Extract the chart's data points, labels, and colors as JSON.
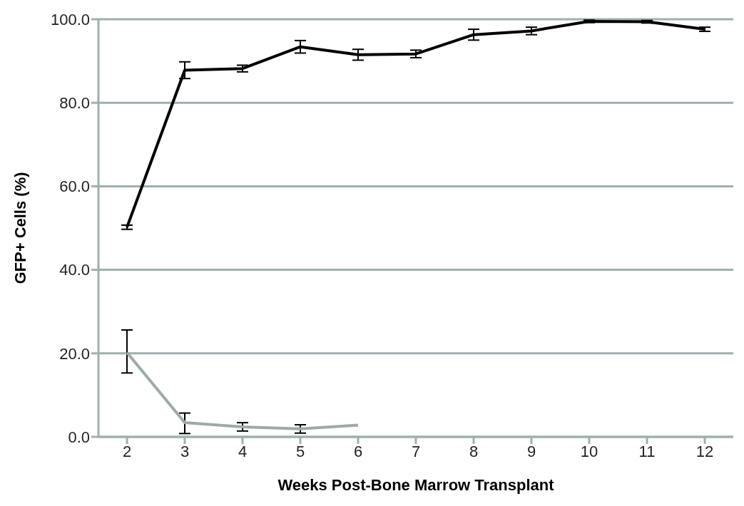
{
  "chart_data": {
    "type": "line",
    "xlabel": "Weeks Post-Bone Marrow Transplant",
    "ylabel": "GFP+ Cells (%)",
    "categories": [
      "2",
      "3",
      "4",
      "5",
      "6",
      "7",
      "8",
      "9",
      "10",
      "11",
      "12"
    ],
    "series": [
      {
        "color": "#000000",
        "values": [
          50.2,
          87.8,
          88.2,
          93.4,
          91.5,
          91.7,
          96.3,
          97.2,
          99.5,
          99.4,
          97.6
        ],
        "errors": [
          0.5,
          2,
          0.8,
          1.5,
          1.3,
          0.9,
          1.3,
          0.9,
          0.3,
          0.3,
          0.5
        ]
      },
      {
        "color": "#9eaaa8",
        "values": [
          20.2,
          3.4,
          2.4,
          1.9,
          2.8,
          null,
          null,
          null,
          null,
          null,
          null
        ],
        "errors": [
          [
            15.3,
            25.6
          ],
          [
            0.8,
            5.7
          ],
          1,
          1,
          null,
          null,
          null,
          null,
          null,
          null,
          null
        ]
      }
    ],
    "ylim": [
      0,
      100
    ],
    "yticks": [
      {
        "value": 0,
        "label": "0.0"
      },
      {
        "value": 20,
        "label": "20.0"
      },
      {
        "value": 40,
        "label": "40.0"
      },
      {
        "value": 60,
        "label": "60.0"
      },
      {
        "value": 80,
        "label": "80.0"
      },
      {
        "value": 100,
        "label": "100.0"
      }
    ],
    "grid": "y",
    "legend": false,
    "marker": "none",
    "line_style": "solid"
  }
}
